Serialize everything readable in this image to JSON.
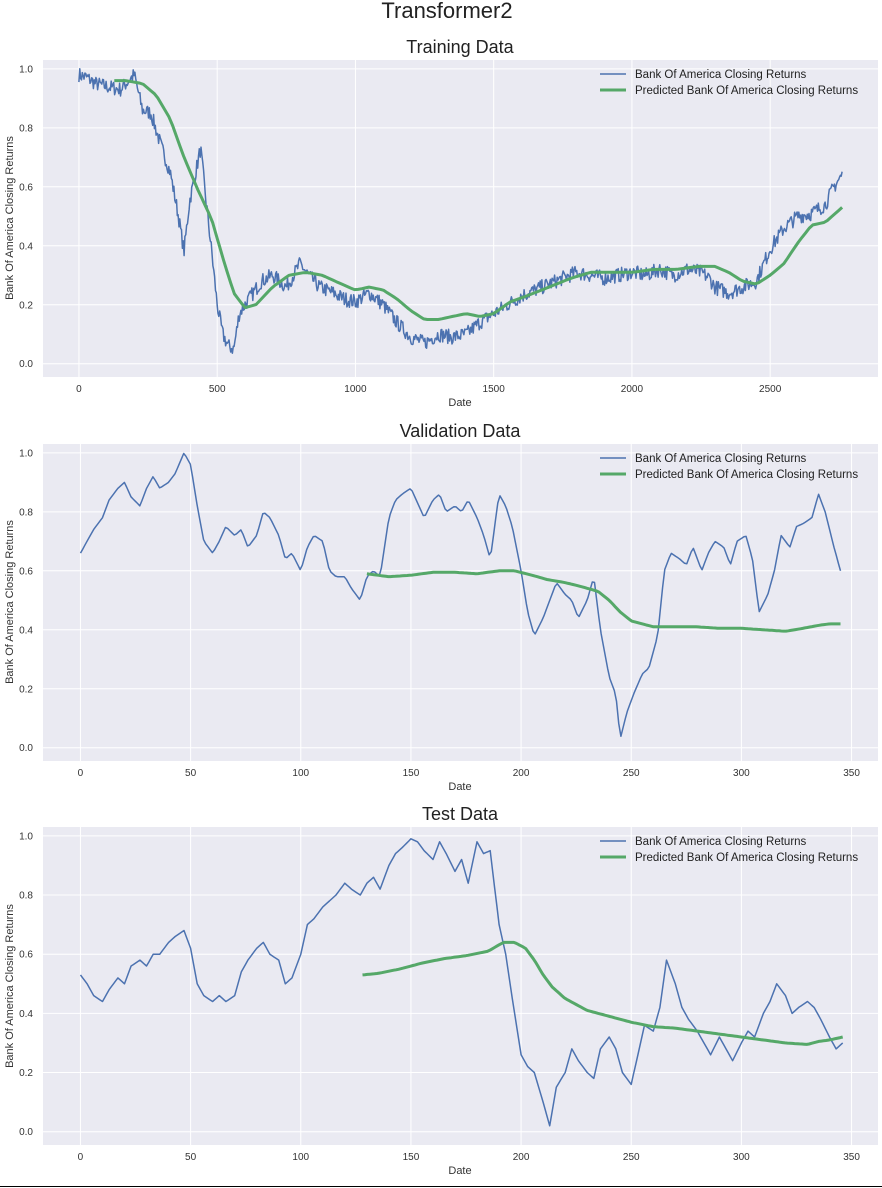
{
  "figure_title": "Transformer2",
  "chart_data": [
    {
      "type": "line",
      "title": "Training Data",
      "xlabel": "Date",
      "ylabel": "Bank Of America Closing Returns",
      "xlim": [
        -130,
        2890
      ],
      "ylim": [
        -0.045,
        1.03
      ],
      "xticks": [
        0,
        500,
        1000,
        1500,
        2000,
        2500
      ],
      "yticks": [
        0.0,
        0.2,
        0.4,
        0.6,
        0.8,
        1.0
      ],
      "grid": true,
      "legend": "top-right",
      "series": [
        {
          "name": "Bank Of America Closing Returns",
          "color": "#4c72b0",
          "kind": "noisy",
          "x": [
            0,
            30,
            60,
            100,
            150,
            180,
            200,
            230,
            260,
            300,
            330,
            360,
            380,
            400,
            420,
            440,
            460,
            480,
            500,
            520,
            540,
            560,
            580,
            600,
            630,
            660,
            700,
            750,
            800,
            830,
            870,
            920,
            960,
            1000,
            1050,
            1100,
            1150,
            1200,
            1250,
            1300,
            1350,
            1400,
            1450,
            1500,
            1550,
            1600,
            1650,
            1700,
            1750,
            1800,
            1850,
            1900,
            1950,
            2000,
            2050,
            2100,
            2150,
            2200,
            2250,
            2280,
            2300,
            2350,
            2400,
            2450,
            2500,
            2550,
            2600,
            2650,
            2700,
            2730,
            2760
          ],
          "values": [
            0.98,
            0.97,
            0.95,
            0.94,
            0.93,
            0.96,
            0.98,
            0.86,
            0.85,
            0.73,
            0.65,
            0.5,
            0.38,
            0.55,
            0.64,
            0.73,
            0.55,
            0.38,
            0.2,
            0.1,
            0.06,
            0.05,
            0.17,
            0.2,
            0.24,
            0.28,
            0.3,
            0.26,
            0.34,
            0.3,
            0.26,
            0.24,
            0.22,
            0.21,
            0.24,
            0.2,
            0.14,
            0.09,
            0.07,
            0.1,
            0.09,
            0.1,
            0.14,
            0.17,
            0.2,
            0.23,
            0.25,
            0.27,
            0.29,
            0.31,
            0.3,
            0.29,
            0.3,
            0.31,
            0.3,
            0.32,
            0.3,
            0.32,
            0.31,
            0.29,
            0.26,
            0.24,
            0.26,
            0.28,
            0.39,
            0.46,
            0.5,
            0.51,
            0.54,
            0.6,
            0.64
          ]
        },
        {
          "name": "Predicted Bank Of America Closing Returns",
          "color": "#55a868",
          "kind": "smooth",
          "x": [
            128,
            170,
            230,
            280,
            330,
            380,
            430,
            480,
            520,
            560,
            600,
            640,
            700,
            760,
            820,
            880,
            950,
            1000,
            1050,
            1100,
            1150,
            1200,
            1250,
            1300,
            1350,
            1400,
            1450,
            1500,
            1560,
            1620,
            1700,
            1780,
            1850,
            1920,
            2000,
            2080,
            2160,
            2240,
            2300,
            2350,
            2400,
            2450,
            2500,
            2550,
            2600,
            2650,
            2700,
            2760
          ],
          "values": [
            0.96,
            0.96,
            0.95,
            0.91,
            0.83,
            0.7,
            0.59,
            0.49,
            0.36,
            0.24,
            0.19,
            0.2,
            0.26,
            0.3,
            0.31,
            0.3,
            0.27,
            0.25,
            0.26,
            0.25,
            0.22,
            0.18,
            0.15,
            0.15,
            0.16,
            0.17,
            0.16,
            0.17,
            0.21,
            0.23,
            0.26,
            0.29,
            0.31,
            0.31,
            0.31,
            0.32,
            0.32,
            0.33,
            0.33,
            0.31,
            0.28,
            0.27,
            0.3,
            0.34,
            0.41,
            0.47,
            0.48,
            0.53
          ]
        }
      ]
    },
    {
      "type": "line",
      "title": "Validation Data",
      "xlabel": "Date",
      "ylabel": "Bank Of America Closing Returns",
      "xlim": [
        -17,
        362
      ],
      "ylim": [
        -0.045,
        1.03
      ],
      "xticks": [
        0,
        50,
        100,
        150,
        200,
        250,
        300,
        350
      ],
      "yticks": [
        0.0,
        0.2,
        0.4,
        0.6,
        0.8,
        1.0
      ],
      "grid": true,
      "legend": "top-right",
      "series": [
        {
          "name": "Bank Of America Closing Returns",
          "color": "#4c72b0",
          "kind": "noisy",
          "x": [
            0,
            3,
            6,
            10,
            13,
            17,
            20,
            23,
            27,
            30,
            33,
            36,
            40,
            43,
            47,
            50,
            53,
            56,
            60,
            63,
            66,
            70,
            73,
            76,
            80,
            83,
            86,
            90,
            93,
            96,
            100,
            103,
            106,
            110,
            113,
            116,
            120,
            123,
            127,
            130,
            133,
            136,
            140,
            143,
            146,
            150,
            153,
            156,
            160,
            163,
            166,
            170,
            173,
            176,
            180,
            183,
            186,
            190,
            193,
            196,
            200,
            203,
            206,
            210,
            213,
            216,
            220,
            223,
            226,
            230,
            233,
            236,
            240,
            243,
            245,
            248,
            251,
            255,
            258,
            262,
            265,
            268,
            272,
            275,
            278,
            282,
            285,
            288,
            292,
            295,
            298,
            302,
            305,
            308,
            312,
            315,
            318,
            322,
            325,
            328,
            332,
            335,
            338,
            342,
            345
          ],
          "values": [
            0.66,
            0.7,
            0.74,
            0.78,
            0.84,
            0.88,
            0.9,
            0.85,
            0.82,
            0.88,
            0.92,
            0.88,
            0.9,
            0.93,
            1.0,
            0.96,
            0.82,
            0.7,
            0.66,
            0.7,
            0.75,
            0.72,
            0.74,
            0.68,
            0.72,
            0.8,
            0.78,
            0.72,
            0.64,
            0.66,
            0.6,
            0.68,
            0.72,
            0.7,
            0.6,
            0.58,
            0.58,
            0.54,
            0.5,
            0.58,
            0.6,
            0.58,
            0.78,
            0.84,
            0.86,
            0.88,
            0.83,
            0.78,
            0.84,
            0.86,
            0.8,
            0.82,
            0.8,
            0.84,
            0.78,
            0.72,
            0.64,
            0.86,
            0.82,
            0.75,
            0.6,
            0.46,
            0.38,
            0.44,
            0.5,
            0.56,
            0.52,
            0.5,
            0.44,
            0.5,
            0.58,
            0.4,
            0.24,
            0.18,
            0.03,
            0.12,
            0.18,
            0.25,
            0.27,
            0.38,
            0.6,
            0.66,
            0.64,
            0.62,
            0.68,
            0.6,
            0.66,
            0.7,
            0.68,
            0.62,
            0.7,
            0.72,
            0.64,
            0.46,
            0.52,
            0.6,
            0.72,
            0.68,
            0.75,
            0.76,
            0.78,
            0.86,
            0.8,
            0.68,
            0.6
          ]
        },
        {
          "name": "Predicted Bank Of America Closing Returns",
          "color": "#55a868",
          "kind": "smooth",
          "x": [
            130,
            140,
            150,
            160,
            170,
            180,
            190,
            197,
            205,
            212,
            220,
            228,
            235,
            240,
            245,
            250,
            255,
            260,
            270,
            280,
            290,
            300,
            310,
            320,
            328,
            335,
            340,
            345
          ],
          "values": [
            0.59,
            0.58,
            0.585,
            0.595,
            0.595,
            0.59,
            0.6,
            0.6,
            0.585,
            0.57,
            0.56,
            0.545,
            0.53,
            0.5,
            0.46,
            0.43,
            0.42,
            0.41,
            0.41,
            0.41,
            0.405,
            0.405,
            0.4,
            0.395,
            0.405,
            0.415,
            0.42,
            0.42
          ]
        }
      ]
    },
    {
      "type": "line",
      "title": "Test Data",
      "xlabel": "Date",
      "ylabel": "Bank Of America Closing Returns",
      "xlim": [
        -17,
        362
      ],
      "ylim": [
        -0.045,
        1.03
      ],
      "xticks": [
        0,
        50,
        100,
        150,
        200,
        250,
        300,
        350
      ],
      "yticks": [
        0.0,
        0.2,
        0.4,
        0.6,
        0.8,
        1.0
      ],
      "grid": true,
      "legend": "top-right",
      "series": [
        {
          "name": "Bank Of America Closing Returns",
          "color": "#4c72b0",
          "kind": "noisy",
          "x": [
            0,
            3,
            6,
            10,
            13,
            17,
            20,
            23,
            27,
            30,
            33,
            36,
            40,
            43,
            47,
            50,
            53,
            56,
            60,
            63,
            66,
            70,
            73,
            76,
            80,
            83,
            86,
            90,
            93,
            96,
            100,
            103,
            106,
            110,
            113,
            116,
            120,
            123,
            127,
            130,
            133,
            136,
            140,
            143,
            146,
            150,
            153,
            156,
            160,
            163,
            166,
            170,
            173,
            176,
            180,
            183,
            186,
            190,
            193,
            196,
            200,
            203,
            206,
            210,
            213,
            216,
            220,
            223,
            226,
            230,
            233,
            236,
            240,
            243,
            246,
            250,
            253,
            256,
            260,
            263,
            266,
            270,
            273,
            276,
            280,
            283,
            286,
            290,
            293,
            296,
            300,
            303,
            306,
            310,
            313,
            316,
            320,
            323,
            326,
            330,
            333,
            336,
            340,
            343,
            346
          ],
          "values": [
            0.53,
            0.5,
            0.46,
            0.44,
            0.48,
            0.52,
            0.5,
            0.56,
            0.58,
            0.56,
            0.6,
            0.6,
            0.64,
            0.66,
            0.68,
            0.62,
            0.5,
            0.46,
            0.44,
            0.46,
            0.44,
            0.46,
            0.54,
            0.58,
            0.62,
            0.64,
            0.6,
            0.58,
            0.5,
            0.52,
            0.6,
            0.7,
            0.72,
            0.76,
            0.78,
            0.8,
            0.84,
            0.82,
            0.8,
            0.84,
            0.86,
            0.82,
            0.9,
            0.94,
            0.96,
            0.99,
            0.98,
            0.95,
            0.92,
            0.98,
            0.94,
            0.88,
            0.92,
            0.84,
            0.98,
            0.94,
            0.95,
            0.7,
            0.6,
            0.45,
            0.26,
            0.22,
            0.2,
            0.1,
            0.02,
            0.15,
            0.2,
            0.28,
            0.24,
            0.2,
            0.18,
            0.28,
            0.32,
            0.28,
            0.2,
            0.16,
            0.26,
            0.36,
            0.34,
            0.42,
            0.58,
            0.5,
            0.42,
            0.38,
            0.34,
            0.3,
            0.26,
            0.32,
            0.28,
            0.24,
            0.3,
            0.34,
            0.32,
            0.4,
            0.44,
            0.5,
            0.46,
            0.4,
            0.42,
            0.44,
            0.42,
            0.38,
            0.32,
            0.28,
            0.3
          ]
        },
        {
          "name": "Predicted Bank Of America Closing Returns",
          "color": "#55a868",
          "kind": "smooth",
          "x": [
            128,
            135,
            145,
            155,
            165,
            175,
            185,
            192,
            197,
            202,
            206,
            210,
            214,
            220,
            230,
            240,
            250,
            260,
            270,
            280,
            290,
            300,
            310,
            320,
            330,
            335,
            340,
            346
          ],
          "values": [
            0.53,
            0.535,
            0.55,
            0.57,
            0.585,
            0.595,
            0.61,
            0.64,
            0.64,
            0.62,
            0.58,
            0.53,
            0.49,
            0.45,
            0.41,
            0.39,
            0.37,
            0.355,
            0.35,
            0.34,
            0.33,
            0.32,
            0.31,
            0.3,
            0.295,
            0.305,
            0.31,
            0.32
          ]
        }
      ]
    }
  ]
}
